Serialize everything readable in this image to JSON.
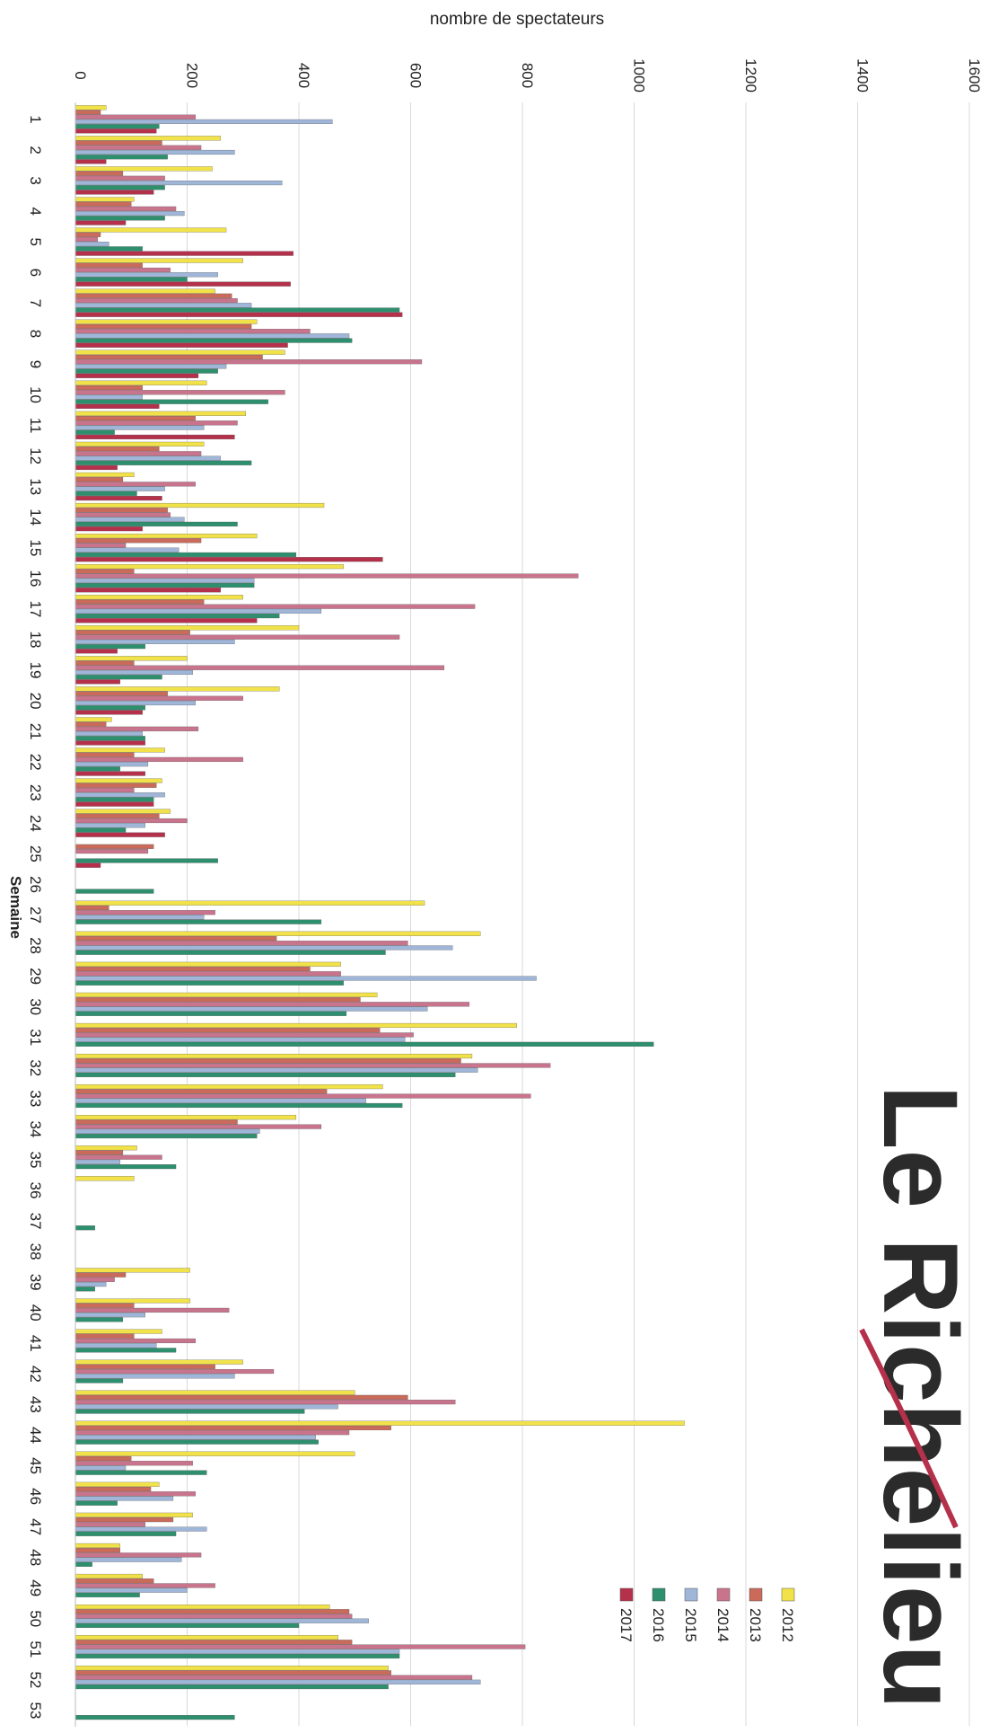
{
  "logo": {
    "text": "Le Richelieu"
  },
  "chart_data": {
    "type": "bar",
    "orientation": "horizontal",
    "xlabel": "nombre de spectateurs",
    "ylabel": "Semaine",
    "xlim": [
      0,
      1600
    ],
    "xticks": [
      "0",
      "200",
      "400",
      "600",
      "800",
      "1000",
      "1200",
      "1400",
      "1600"
    ],
    "categories": [
      "1",
      "2",
      "3",
      "4",
      "5",
      "6",
      "7",
      "8",
      "9",
      "10",
      "11",
      "12",
      "13",
      "14",
      "15",
      "16",
      "17",
      "18",
      "19",
      "20",
      "21",
      "22",
      "23",
      "24",
      "25",
      "26",
      "27",
      "28",
      "29",
      "30",
      "31",
      "32",
      "33",
      "34",
      "35",
      "36",
      "37",
      "38",
      "39",
      "40",
      "41",
      "42",
      "43",
      "44",
      "45",
      "46",
      "47",
      "48",
      "49",
      "50",
      "51",
      "52",
      "53"
    ],
    "grid": true,
    "legend_position": "bottom-right",
    "series": [
      {
        "name": "2012",
        "color": "#f2e24a",
        "values": [
          55,
          260,
          245,
          105,
          270,
          300,
          250,
          325,
          375,
          235,
          305,
          230,
          105,
          445,
          325,
          480,
          300,
          400,
          200,
          365,
          65,
          160,
          155,
          170,
          0,
          0,
          625,
          725,
          475,
          540,
          790,
          710,
          550,
          395,
          110,
          105,
          0,
          0,
          205,
          205,
          155,
          300,
          500,
          1090,
          500,
          150,
          210,
          80,
          120,
          455,
          470,
          560,
          0
        ]
      },
      {
        "name": "2013",
        "color": "#c96a5a",
        "values": [
          45,
          155,
          85,
          100,
          45,
          120,
          280,
          315,
          335,
          120,
          215,
          150,
          85,
          165,
          225,
          105,
          230,
          205,
          105,
          165,
          55,
          105,
          145,
          150,
          140,
          0,
          60,
          360,
          420,
          510,
          545,
          690,
          450,
          290,
          85,
          0,
          0,
          0,
          90,
          105,
          105,
          250,
          595,
          565,
          100,
          135,
          175,
          80,
          140,
          490,
          495,
          565,
          0
        ]
      },
      {
        "name": "2014",
        "color": "#c9748d",
        "values": [
          215,
          225,
          160,
          180,
          40,
          170,
          290,
          420,
          620,
          375,
          290,
          225,
          215,
          170,
          90,
          900,
          715,
          580,
          660,
          300,
          220,
          300,
          105,
          200,
          130,
          0,
          250,
          595,
          475,
          705,
          605,
          850,
          815,
          440,
          155,
          0,
          0,
          0,
          70,
          275,
          215,
          355,
          680,
          490,
          210,
          215,
          125,
          225,
          250,
          495,
          805,
          710,
          0
        ]
      },
      {
        "name": "2015",
        "color": "#9fb6d8",
        "values": [
          460,
          285,
          370,
          195,
          60,
          255,
          315,
          490,
          270,
          120,
          230,
          260,
          160,
          195,
          185,
          320,
          440,
          285,
          210,
          215,
          120,
          130,
          160,
          125,
          0,
          0,
          230,
          675,
          825,
          630,
          590,
          720,
          520,
          330,
          80,
          0,
          0,
          0,
          55,
          125,
          145,
          285,
          470,
          430,
          90,
          175,
          235,
          190,
          200,
          525,
          580,
          725,
          0
        ]
      },
      {
        "name": "2016",
        "color": "#2e8f6e",
        "values": [
          150,
          165,
          160,
          160,
          120,
          200,
          580,
          495,
          255,
          345,
          70,
          315,
          110,
          290,
          395,
          320,
          365,
          125,
          155,
          125,
          125,
          80,
          140,
          90,
          255,
          140,
          440,
          555,
          480,
          485,
          1035,
          680,
          585,
          325,
          180,
          0,
          35,
          0,
          35,
          85,
          180,
          85,
          410,
          435,
          235,
          75,
          180,
          30,
          115,
          400,
          580,
          560,
          285
        ]
      },
      {
        "name": "2017",
        "color": "#b5304a",
        "values": [
          145,
          55,
          140,
          90,
          390,
          385,
          585,
          380,
          220,
          150,
          285,
          75,
          155,
          120,
          550,
          260,
          325,
          75,
          80,
          120,
          125,
          125,
          140,
          160,
          45,
          0,
          0,
          0,
          0,
          0,
          0,
          0,
          0,
          0,
          0,
          0,
          0,
          0,
          0,
          0,
          0,
          0,
          0,
          0,
          0,
          0,
          0,
          0,
          0,
          0,
          0,
          0,
          0
        ]
      }
    ]
  }
}
